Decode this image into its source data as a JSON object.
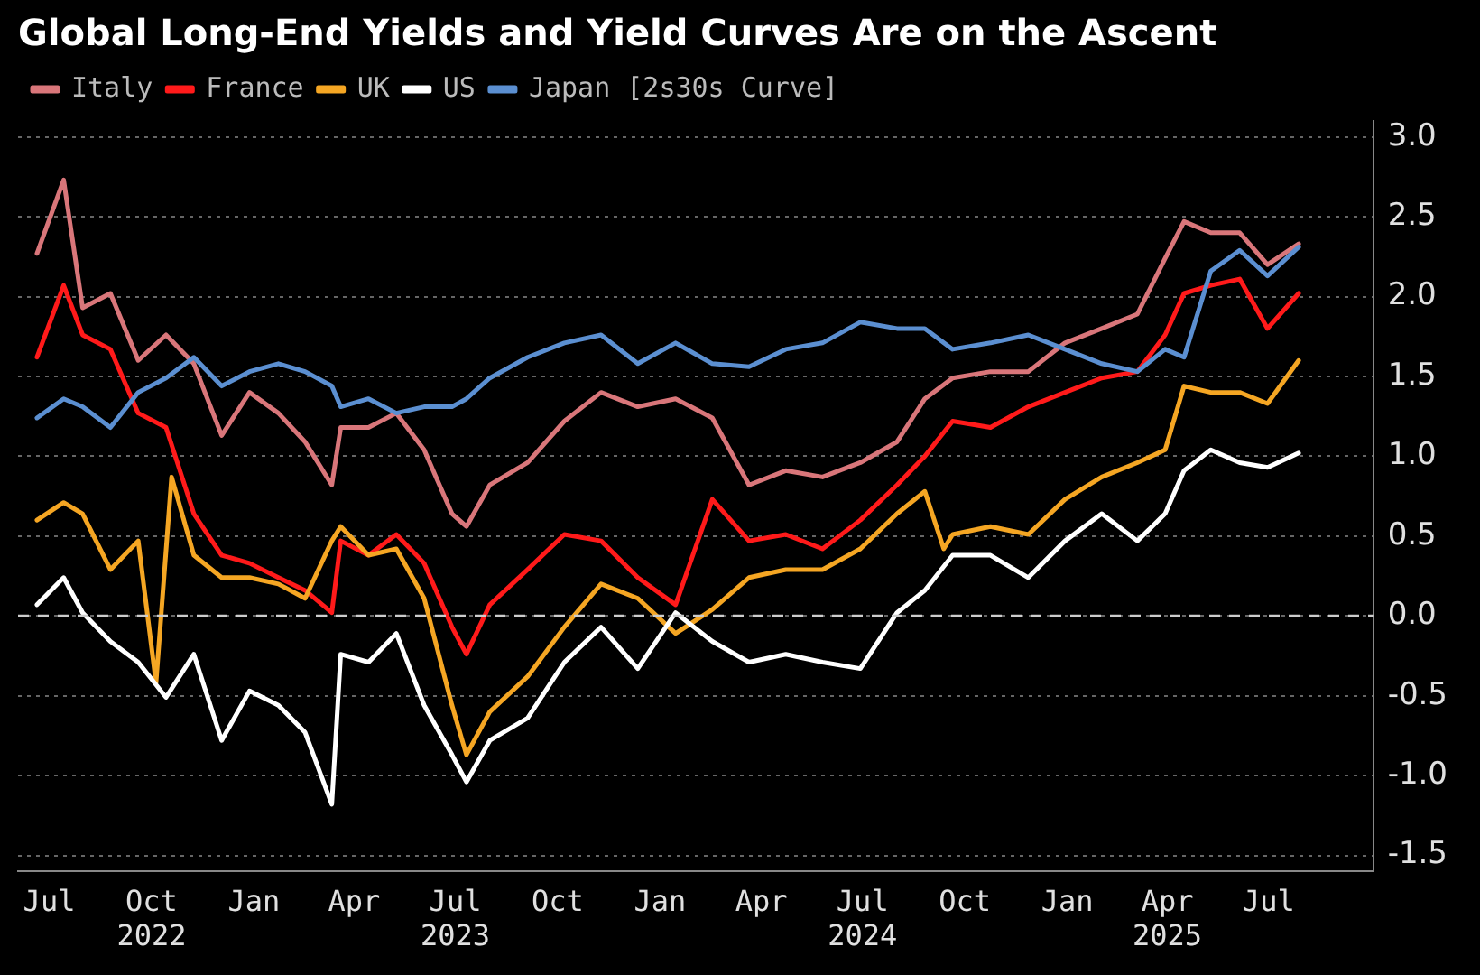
{
  "chart_data": {
    "type": "line",
    "title": "Global Long-End Yields and Yield Curves Are on the Ascent",
    "x": [
      "2022-06-20",
      "2022-07-14",
      "2022-07-31",
      "2022-08-25",
      "2022-09-19",
      "2022-10-14",
      "2022-11-08",
      "2022-12-03",
      "2022-12-28",
      "2023-01-23",
      "2023-02-16",
      "2023-03-12",
      "2023-03-20",
      "2023-04-14",
      "2023-05-09",
      "2023-06-03",
      "2023-06-28",
      "2023-07-11",
      "2023-08-01",
      "2023-09-04",
      "2023-10-07",
      "2023-11-09",
      "2023-12-12",
      "2024-01-15",
      "2024-02-17",
      "2024-03-21",
      "2024-04-23",
      "2024-05-26",
      "2024-06-29",
      "2024-08-01",
      "2024-08-26",
      "2024-09-20",
      "2024-10-24",
      "2024-11-27",
      "2024-12-30",
      "2025-02-01",
      "2025-03-05",
      "2025-03-30",
      "2025-04-16",
      "2025-05-10",
      "2025-06-05",
      "2025-06-30",
      "2025-07-28"
    ],
    "series": [
      {
        "name": "Italy",
        "color": "#d9767a",
        "values": [
          2.27,
          2.73,
          1.93,
          2.02,
          1.6,
          1.76,
          1.58,
          1.13,
          1.4,
          1.27,
          1.09,
          0.82,
          1.18,
          1.18,
          1.27,
          1.04,
          0.64,
          0.56,
          0.82,
          0.96,
          1.22,
          1.4,
          1.31,
          1.36,
          1.24,
          0.82,
          0.91,
          0.87,
          0.96,
          1.09,
          1.36,
          1.49,
          1.53,
          1.53,
          1.71,
          1.8,
          1.89,
          2.24,
          2.47,
          2.4,
          2.4,
          2.2,
          2.33
        ]
      },
      {
        "name": "France",
        "color": "#ff1a1a",
        "values": [
          1.62,
          2.07,
          1.76,
          1.67,
          1.27,
          1.18,
          0.64,
          0.38,
          0.33,
          0.24,
          0.16,
          0.02,
          0.47,
          0.38,
          0.51,
          0.33,
          -0.07,
          -0.24,
          0.07,
          0.29,
          0.51,
          0.47,
          0.24,
          0.07,
          0.73,
          0.47,
          0.51,
          0.42,
          0.6,
          0.82,
          1.0,
          1.22,
          1.18,
          1.31,
          1.4,
          1.49,
          1.53,
          1.76,
          2.02,
          2.07,
          2.11,
          1.8,
          2.02
        ]
      },
      {
        "name": "UK",
        "color": "#f5a623",
        "x": [
          "2022-06-20",
          "2022-07-14",
          "2022-07-31",
          "2022-08-25",
          "2022-09-19",
          "2022-10-05",
          "2022-10-19",
          "2022-11-08",
          "2022-12-03",
          "2022-12-28",
          "2023-01-23",
          "2023-02-16",
          "2023-03-12",
          "2023-03-20",
          "2023-04-14",
          "2023-05-09",
          "2023-06-03",
          "2023-06-28",
          "2023-07-11",
          "2023-08-01",
          "2023-09-04",
          "2023-10-07",
          "2023-11-09",
          "2023-12-12",
          "2024-01-15",
          "2024-02-17",
          "2024-03-21",
          "2024-04-23",
          "2024-05-26",
          "2024-06-29",
          "2024-08-01",
          "2024-08-26",
          "2024-09-12",
          "2024-09-20",
          "2024-10-24",
          "2024-11-27",
          "2024-12-30",
          "2025-02-01",
          "2025-03-05",
          "2025-03-30",
          "2025-04-16",
          "2025-05-10",
          "2025-06-05",
          "2025-06-30",
          "2025-07-28"
        ],
        "values": [
          0.6,
          0.71,
          0.64,
          0.29,
          0.47,
          -0.42,
          0.87,
          0.38,
          0.24,
          0.24,
          0.2,
          0.11,
          0.47,
          0.56,
          0.38,
          0.42,
          0.11,
          -0.56,
          -0.87,
          -0.6,
          -0.38,
          -0.07,
          0.2,
          0.11,
          -0.11,
          0.04,
          0.24,
          0.29,
          0.29,
          0.42,
          0.64,
          0.78,
          0.42,
          0.51,
          0.56,
          0.51,
          0.73,
          0.87,
          0.96,
          1.04,
          1.44,
          1.4,
          1.4,
          1.33,
          1.6
        ]
      },
      {
        "name": "US",
        "color": "#ffffff",
        "values": [
          0.07,
          0.24,
          0.02,
          -0.16,
          -0.29,
          -0.51,
          -0.24,
          -0.78,
          -0.47,
          -0.56,
          -0.73,
          -1.18,
          -0.24,
          -0.29,
          -0.11,
          -0.56,
          -0.87,
          -1.04,
          -0.78,
          -0.64,
          -0.29,
          -0.07,
          -0.33,
          0.02,
          -0.16,
          -0.29,
          -0.24,
          -0.29,
          -0.33,
          0.02,
          0.16,
          0.38,
          0.38,
          0.24,
          0.47,
          0.64,
          0.47,
          0.64,
          0.91,
          1.04,
          0.96,
          0.93,
          1.02
        ]
      },
      {
        "name": "Japan [2s30s Curve]",
        "color": "#5b8fd1",
        "values": [
          1.24,
          1.36,
          1.31,
          1.18,
          1.4,
          1.49,
          1.62,
          1.44,
          1.53,
          1.58,
          1.53,
          1.44,
          1.31,
          1.36,
          1.27,
          1.31,
          1.31,
          1.36,
          1.49,
          1.62,
          1.71,
          1.76,
          1.58,
          1.71,
          1.58,
          1.56,
          1.67,
          1.71,
          1.84,
          1.8,
          1.8,
          1.67,
          1.71,
          1.76,
          1.67,
          1.58,
          1.53,
          1.67,
          1.62,
          2.16,
          2.29,
          2.13,
          2.31
        ]
      }
    ],
    "xlim": [
      "2022-06-03",
      "2025-10-03"
    ],
    "xticks": [
      {
        "value": "2022-07",
        "label": "Jul"
      },
      {
        "value": "2022-10",
        "label": "Oct\n2022"
      },
      {
        "value": "2023-01",
        "label": "Jan"
      },
      {
        "value": "2023-04",
        "label": "Apr"
      },
      {
        "value": "2023-07",
        "label": "Jul\n2023"
      },
      {
        "value": "2023-10",
        "label": "Oct"
      },
      {
        "value": "2024-01",
        "label": "Jan"
      },
      {
        "value": "2024-04",
        "label": "Apr"
      },
      {
        "value": "2024-07",
        "label": "Jul\n2024"
      },
      {
        "value": "2024-10",
        "label": "Oct"
      },
      {
        "value": "2025-01",
        "label": "Jan"
      },
      {
        "value": "2025-04",
        "label": "Apr\n2025"
      },
      {
        "value": "2025-07",
        "label": "Jul"
      }
    ],
    "ylim": [
      -1.6,
      3.1
    ],
    "yticks": [
      {
        "value": -1.5,
        "label": "-1.5"
      },
      {
        "value": -1,
        "label": "-1.0"
      },
      {
        "value": -0.5,
        "label": "-0.5"
      },
      {
        "value": 0,
        "label": "0.0"
      },
      {
        "value": 0.5,
        "label": "0.5"
      },
      {
        "value": 1,
        "label": "1.0"
      },
      {
        "value": 1.5,
        "label": "1.5"
      },
      {
        "value": 2,
        "label": "2.0"
      },
      {
        "value": 2.5,
        "label": "2.5"
      },
      {
        "value": 3,
        "label": "3.0"
      }
    ],
    "ref_lines": [
      {
        "axis": "y",
        "value": 0,
        "color": "#cccccc",
        "line_style": "dashed"
      }
    ],
    "grid": "y",
    "legend": "top left",
    "marker": "none",
    "line_style": "solid"
  }
}
